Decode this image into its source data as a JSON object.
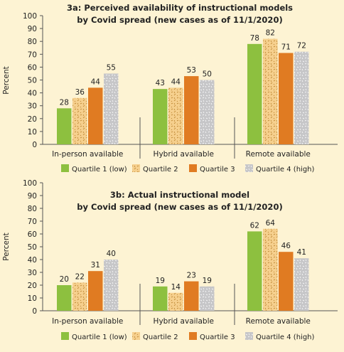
{
  "colors": {
    "background": "#fdf3d3",
    "quartile1": "#8dc03f",
    "quartile2": "#f3c77c",
    "quartile3": "#e07b22",
    "quartile4": "#b9b9bb",
    "axis": "#555555"
  },
  "chart_data": [
    {
      "type": "bar",
      "title_line1": "3a: Perceived availability of instructional models",
      "title_line2": "by Covid spread (new cases as of 11/1/2020)",
      "ylabel": "Percent",
      "ylim": [
        0,
        100
      ],
      "yticks": [
        0,
        10,
        20,
        30,
        40,
        50,
        60,
        70,
        80,
        90,
        100
      ],
      "categories": [
        "In-person available",
        "Hybrid available",
        "Remote available"
      ],
      "series": [
        {
          "name": "Quartile 1 (low)",
          "values": [
            28,
            43,
            78
          ]
        },
        {
          "name": "Quartile 2",
          "values": [
            36,
            44,
            82
          ]
        },
        {
          "name": "Quartile 3",
          "values": [
            44,
            53,
            71
          ]
        },
        {
          "name": "Quartile 4 (high)",
          "values": [
            55,
            50,
            72
          ]
        }
      ],
      "legend": "bottom",
      "grid": false
    },
    {
      "type": "bar",
      "title_line1": "3b: Actual instructional model",
      "title_line2": "by Covid spread (new cases as of 11/1/2020)",
      "ylabel": "Percent",
      "ylim": [
        0,
        100
      ],
      "yticks": [
        0,
        10,
        20,
        30,
        40,
        50,
        60,
        70,
        80,
        90,
        100
      ],
      "categories": [
        "In-person available",
        "Hybrid available",
        "Remote available"
      ],
      "series": [
        {
          "name": "Quartile 1 (low)",
          "values": [
            20,
            19,
            62
          ]
        },
        {
          "name": "Quartile 2",
          "values": [
            22,
            14,
            64
          ]
        },
        {
          "name": "Quartile 3",
          "values": [
            31,
            23,
            46
          ]
        },
        {
          "name": "Quartile 4 (high)",
          "values": [
            40,
            19,
            41
          ]
        }
      ],
      "legend": "bottom",
      "grid": false
    }
  ]
}
